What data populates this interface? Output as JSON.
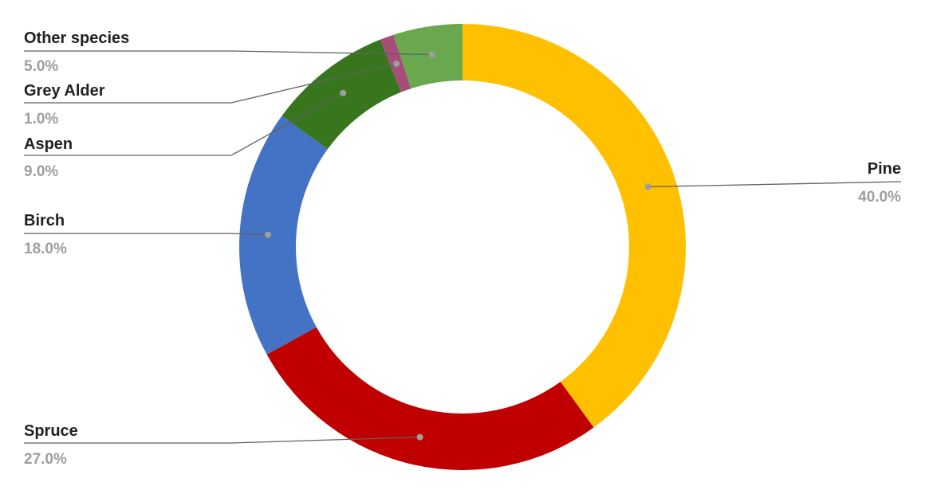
{
  "chart_data": {
    "type": "pie",
    "donut": true,
    "start_angle_deg": 0,
    "direction": "clockwise",
    "slices": [
      {
        "label": "Pine",
        "value": 40.0,
        "display": "40.0%",
        "color": "#FFC000"
      },
      {
        "label": "Spruce",
        "value": 27.0,
        "display": "27.0%",
        "color": "#C00000"
      },
      {
        "label": "Birch",
        "value": 18.0,
        "display": "18.0%",
        "color": "#4472C4"
      },
      {
        "label": "Aspen",
        "value": 9.0,
        "display": "9.0%",
        "color": "#38761D"
      },
      {
        "label": "Grey Alder",
        "value": 1.0,
        "display": "1.0%",
        "color": "#A64D79"
      },
      {
        "label": "Other species",
        "value": 5.0,
        "display": "5.0%",
        "color": "#6AA84F"
      }
    ]
  }
}
